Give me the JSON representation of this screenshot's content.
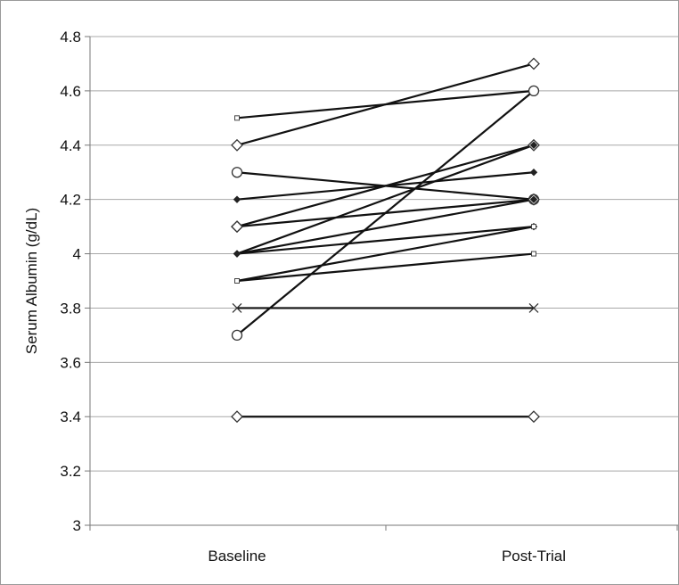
{
  "chart_data": {
    "type": "line",
    "title": "",
    "xlabel": "",
    "ylabel": "Serum Albumin (g/dL)",
    "categories": [
      "Baseline",
      "Post-Trial"
    ],
    "ylim": [
      3,
      4.8
    ],
    "yticks": [
      3,
      3.2,
      3.4,
      3.6,
      3.8,
      4,
      4.2,
      4.4,
      4.6,
      4.8
    ],
    "ytick_labels": [
      "3",
      "3.2",
      "3.4",
      "3.6",
      "3.8",
      "4",
      "4.2",
      "4.4",
      "4.6",
      "4.8"
    ],
    "grid": "horizontal",
    "legend": "none",
    "line_color": "#111111",
    "grid_color": "#a8a8a8",
    "series": [
      {
        "values": [
          4.5,
          4.6
        ],
        "marker": "square"
      },
      {
        "values": [
          4.4,
          4.7
        ],
        "marker": "diamond"
      },
      {
        "values": [
          4.3,
          4.2
        ],
        "marker": "circle"
      },
      {
        "values": [
          4.2,
          4.3
        ],
        "marker": "diamond-small"
      },
      {
        "values": [
          4.1,
          4.4
        ],
        "marker": "diamond"
      },
      {
        "values": [
          4.1,
          4.2
        ],
        "marker": "diamond"
      },
      {
        "values": [
          4.0,
          4.4
        ],
        "marker": "diamond-small"
      },
      {
        "values": [
          4.0,
          4.2
        ],
        "marker": "diamond-small"
      },
      {
        "values": [
          4.0,
          4.1
        ],
        "marker": "diamond-small"
      },
      {
        "values": [
          3.9,
          4.1
        ],
        "marker": "square"
      },
      {
        "values": [
          3.9,
          4.0
        ],
        "marker": "square"
      },
      {
        "values": [
          3.8,
          3.8
        ],
        "marker": "x"
      },
      {
        "values": [
          3.7,
          4.6
        ],
        "marker": "circle"
      },
      {
        "values": [
          3.4,
          3.4
        ],
        "marker": "diamond"
      }
    ]
  }
}
